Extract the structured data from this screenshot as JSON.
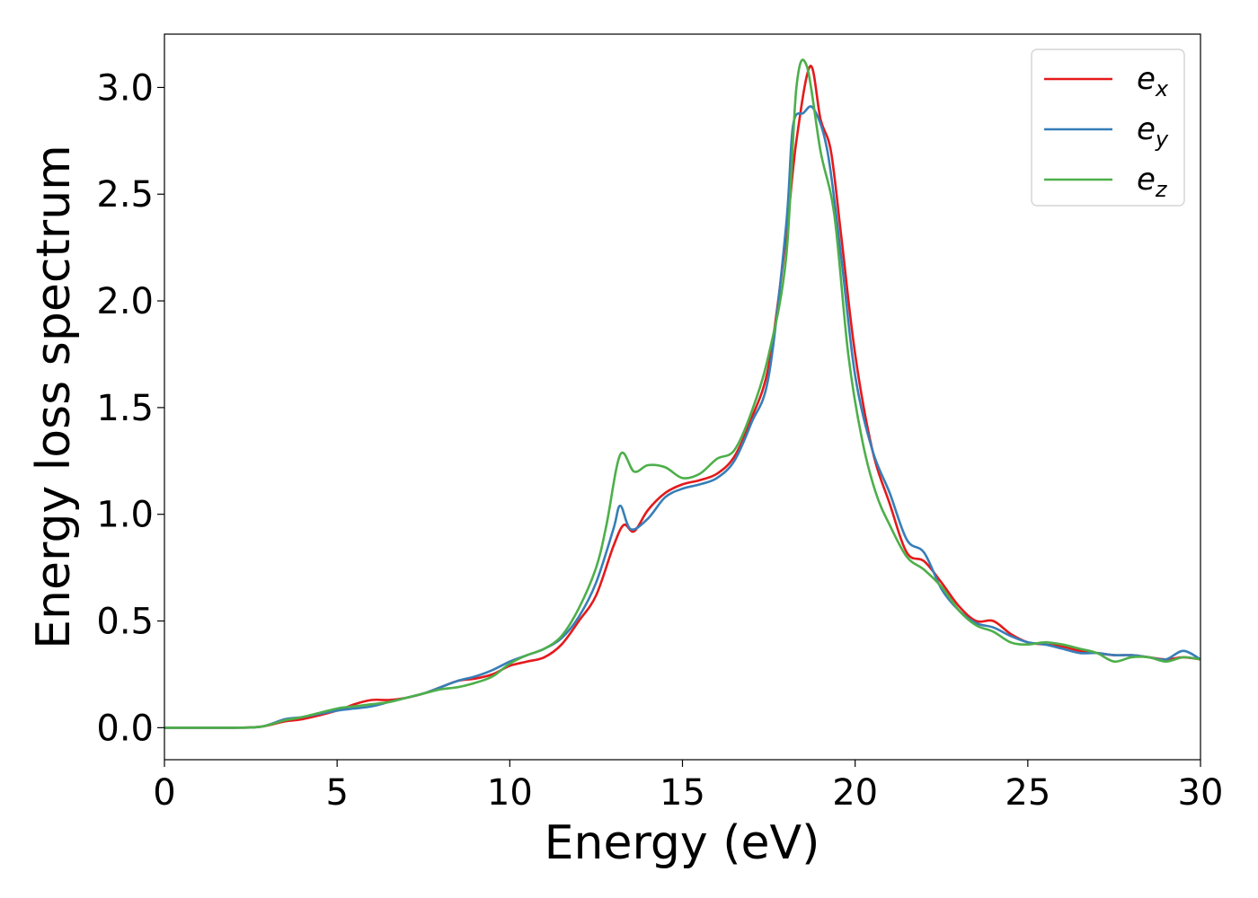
{
  "chart_data": {
    "type": "line",
    "xlabel": "Energy (eV)",
    "ylabel": "Energy loss spectrum",
    "xlim": [
      0,
      30
    ],
    "ylim": [
      -0.15,
      3.25
    ],
    "xticks": [
      0,
      5,
      10,
      15,
      20,
      25,
      30
    ],
    "yticks": [
      0.0,
      0.5,
      1.0,
      1.5,
      2.0,
      2.5,
      3.0
    ],
    "xtick_labels": [
      "0",
      "5",
      "10",
      "15",
      "20",
      "25",
      "30"
    ],
    "ytick_labels": [
      "0.0",
      "0.5",
      "1.0",
      "1.5",
      "2.0",
      "2.5",
      "3.0"
    ],
    "grid": false,
    "legend_position": "top-right",
    "series": [
      {
        "base": "e",
        "sub": "x",
        "color": "#e41a1c",
        "points": [
          [
            0,
            0.0
          ],
          [
            1,
            0.0
          ],
          [
            2,
            0.0
          ],
          [
            2.8,
            0.005
          ],
          [
            3.5,
            0.03
          ],
          [
            4,
            0.04
          ],
          [
            5,
            0.08
          ],
          [
            5.5,
            0.11
          ],
          [
            6,
            0.13
          ],
          [
            6.5,
            0.13
          ],
          [
            7,
            0.14
          ],
          [
            7.5,
            0.16
          ],
          [
            8,
            0.19
          ],
          [
            8.5,
            0.22
          ],
          [
            9,
            0.23
          ],
          [
            9.5,
            0.25
          ],
          [
            10,
            0.29
          ],
          [
            10.5,
            0.31
          ],
          [
            11,
            0.33
          ],
          [
            11.5,
            0.39
          ],
          [
            12,
            0.5
          ],
          [
            12.5,
            0.62
          ],
          [
            13,
            0.85
          ],
          [
            13.3,
            0.95
          ],
          [
            13.6,
            0.92
          ],
          [
            14,
            1.02
          ],
          [
            14.5,
            1.1
          ],
          [
            15,
            1.14
          ],
          [
            15.5,
            1.16
          ],
          [
            16,
            1.19
          ],
          [
            16.5,
            1.27
          ],
          [
            17,
            1.45
          ],
          [
            17.5,
            1.7
          ],
          [
            18,
            2.3
          ],
          [
            18.3,
            2.75
          ],
          [
            18.7,
            3.1
          ],
          [
            19,
            2.85
          ],
          [
            19.3,
            2.7
          ],
          [
            19.6,
            2.3
          ],
          [
            20,
            1.75
          ],
          [
            20.5,
            1.3
          ],
          [
            21,
            1.05
          ],
          [
            21.5,
            0.82
          ],
          [
            22,
            0.78
          ],
          [
            22.5,
            0.68
          ],
          [
            23,
            0.57
          ],
          [
            23.5,
            0.5
          ],
          [
            24,
            0.5
          ],
          [
            24.5,
            0.44
          ],
          [
            25,
            0.4
          ],
          [
            25.5,
            0.39
          ],
          [
            26,
            0.38
          ],
          [
            26.5,
            0.36
          ],
          [
            27,
            0.35
          ],
          [
            27.5,
            0.34
          ],
          [
            28,
            0.34
          ],
          [
            28.5,
            0.33
          ],
          [
            29,
            0.32
          ],
          [
            29.5,
            0.33
          ],
          [
            30,
            0.32
          ]
        ]
      },
      {
        "base": "e",
        "sub": "y",
        "color": "#377eb8",
        "points": [
          [
            0,
            0.0
          ],
          [
            1,
            0.0
          ],
          [
            2,
            0.0
          ],
          [
            2.8,
            0.005
          ],
          [
            3.5,
            0.04
          ],
          [
            4,
            0.05
          ],
          [
            5,
            0.08
          ],
          [
            5.5,
            0.09
          ],
          [
            6,
            0.1
          ],
          [
            6.5,
            0.12
          ],
          [
            7,
            0.14
          ],
          [
            7.5,
            0.16
          ],
          [
            8,
            0.19
          ],
          [
            8.5,
            0.22
          ],
          [
            9,
            0.24
          ],
          [
            9.5,
            0.27
          ],
          [
            10,
            0.31
          ],
          [
            10.5,
            0.34
          ],
          [
            11,
            0.37
          ],
          [
            11.5,
            0.42
          ],
          [
            12,
            0.52
          ],
          [
            12.5,
            0.68
          ],
          [
            13,
            0.93
          ],
          [
            13.2,
            1.04
          ],
          [
            13.5,
            0.93
          ],
          [
            14,
            0.98
          ],
          [
            14.5,
            1.08
          ],
          [
            15,
            1.12
          ],
          [
            15.5,
            1.14
          ],
          [
            16,
            1.17
          ],
          [
            16.5,
            1.25
          ],
          [
            17,
            1.43
          ],
          [
            17.5,
            1.65
          ],
          [
            18,
            2.35
          ],
          [
            18.2,
            2.82
          ],
          [
            18.5,
            2.88
          ],
          [
            18.8,
            2.9
          ],
          [
            19.2,
            2.7
          ],
          [
            19.6,
            2.2
          ],
          [
            20,
            1.65
          ],
          [
            20.5,
            1.3
          ],
          [
            21,
            1.1
          ],
          [
            21.5,
            0.88
          ],
          [
            22,
            0.82
          ],
          [
            22.5,
            0.65
          ],
          [
            23,
            0.55
          ],
          [
            23.5,
            0.49
          ],
          [
            24,
            0.47
          ],
          [
            24.5,
            0.43
          ],
          [
            25,
            0.4
          ],
          [
            25.5,
            0.39
          ],
          [
            26,
            0.37
          ],
          [
            26.5,
            0.35
          ],
          [
            27,
            0.35
          ],
          [
            27.5,
            0.34
          ],
          [
            28,
            0.34
          ],
          [
            28.5,
            0.33
          ],
          [
            29,
            0.32
          ],
          [
            29.5,
            0.36
          ],
          [
            30,
            0.32
          ]
        ]
      },
      {
        "base": "e",
        "sub": "z",
        "color": "#4daf4a",
        "points": [
          [
            0,
            0.0
          ],
          [
            1,
            0.0
          ],
          [
            2,
            0.0
          ],
          [
            2.8,
            0.005
          ],
          [
            3.5,
            0.035
          ],
          [
            4,
            0.05
          ],
          [
            5,
            0.09
          ],
          [
            5.5,
            0.1
          ],
          [
            6,
            0.11
          ],
          [
            6.5,
            0.12
          ],
          [
            7,
            0.14
          ],
          [
            7.5,
            0.16
          ],
          [
            8,
            0.18
          ],
          [
            8.5,
            0.19
          ],
          [
            9,
            0.21
          ],
          [
            9.5,
            0.24
          ],
          [
            10,
            0.3
          ],
          [
            10.5,
            0.34
          ],
          [
            11,
            0.37
          ],
          [
            11.5,
            0.43
          ],
          [
            12,
            0.56
          ],
          [
            12.5,
            0.75
          ],
          [
            12.8,
            0.95
          ],
          [
            13.2,
            1.28
          ],
          [
            13.6,
            1.2
          ],
          [
            14,
            1.23
          ],
          [
            14.5,
            1.22
          ],
          [
            15,
            1.17
          ],
          [
            15.5,
            1.19
          ],
          [
            16,
            1.26
          ],
          [
            16.5,
            1.3
          ],
          [
            17,
            1.48
          ],
          [
            17.5,
            1.75
          ],
          [
            18,
            2.2
          ],
          [
            18.3,
            3.0
          ],
          [
            18.6,
            3.1
          ],
          [
            19,
            2.7
          ],
          [
            19.4,
            2.4
          ],
          [
            19.8,
            1.75
          ],
          [
            20.2,
            1.35
          ],
          [
            20.6,
            1.1
          ],
          [
            21,
            0.95
          ],
          [
            21.5,
            0.8
          ],
          [
            22,
            0.74
          ],
          [
            22.5,
            0.66
          ],
          [
            23,
            0.55
          ],
          [
            23.5,
            0.48
          ],
          [
            24,
            0.45
          ],
          [
            24.5,
            0.4
          ],
          [
            25,
            0.39
          ],
          [
            25.5,
            0.4
          ],
          [
            26,
            0.39
          ],
          [
            26.5,
            0.37
          ],
          [
            27,
            0.35
          ],
          [
            27.5,
            0.31
          ],
          [
            28,
            0.33
          ],
          [
            28.5,
            0.33
          ],
          [
            29,
            0.31
          ],
          [
            29.5,
            0.33
          ],
          [
            30,
            0.32
          ]
        ]
      }
    ]
  }
}
